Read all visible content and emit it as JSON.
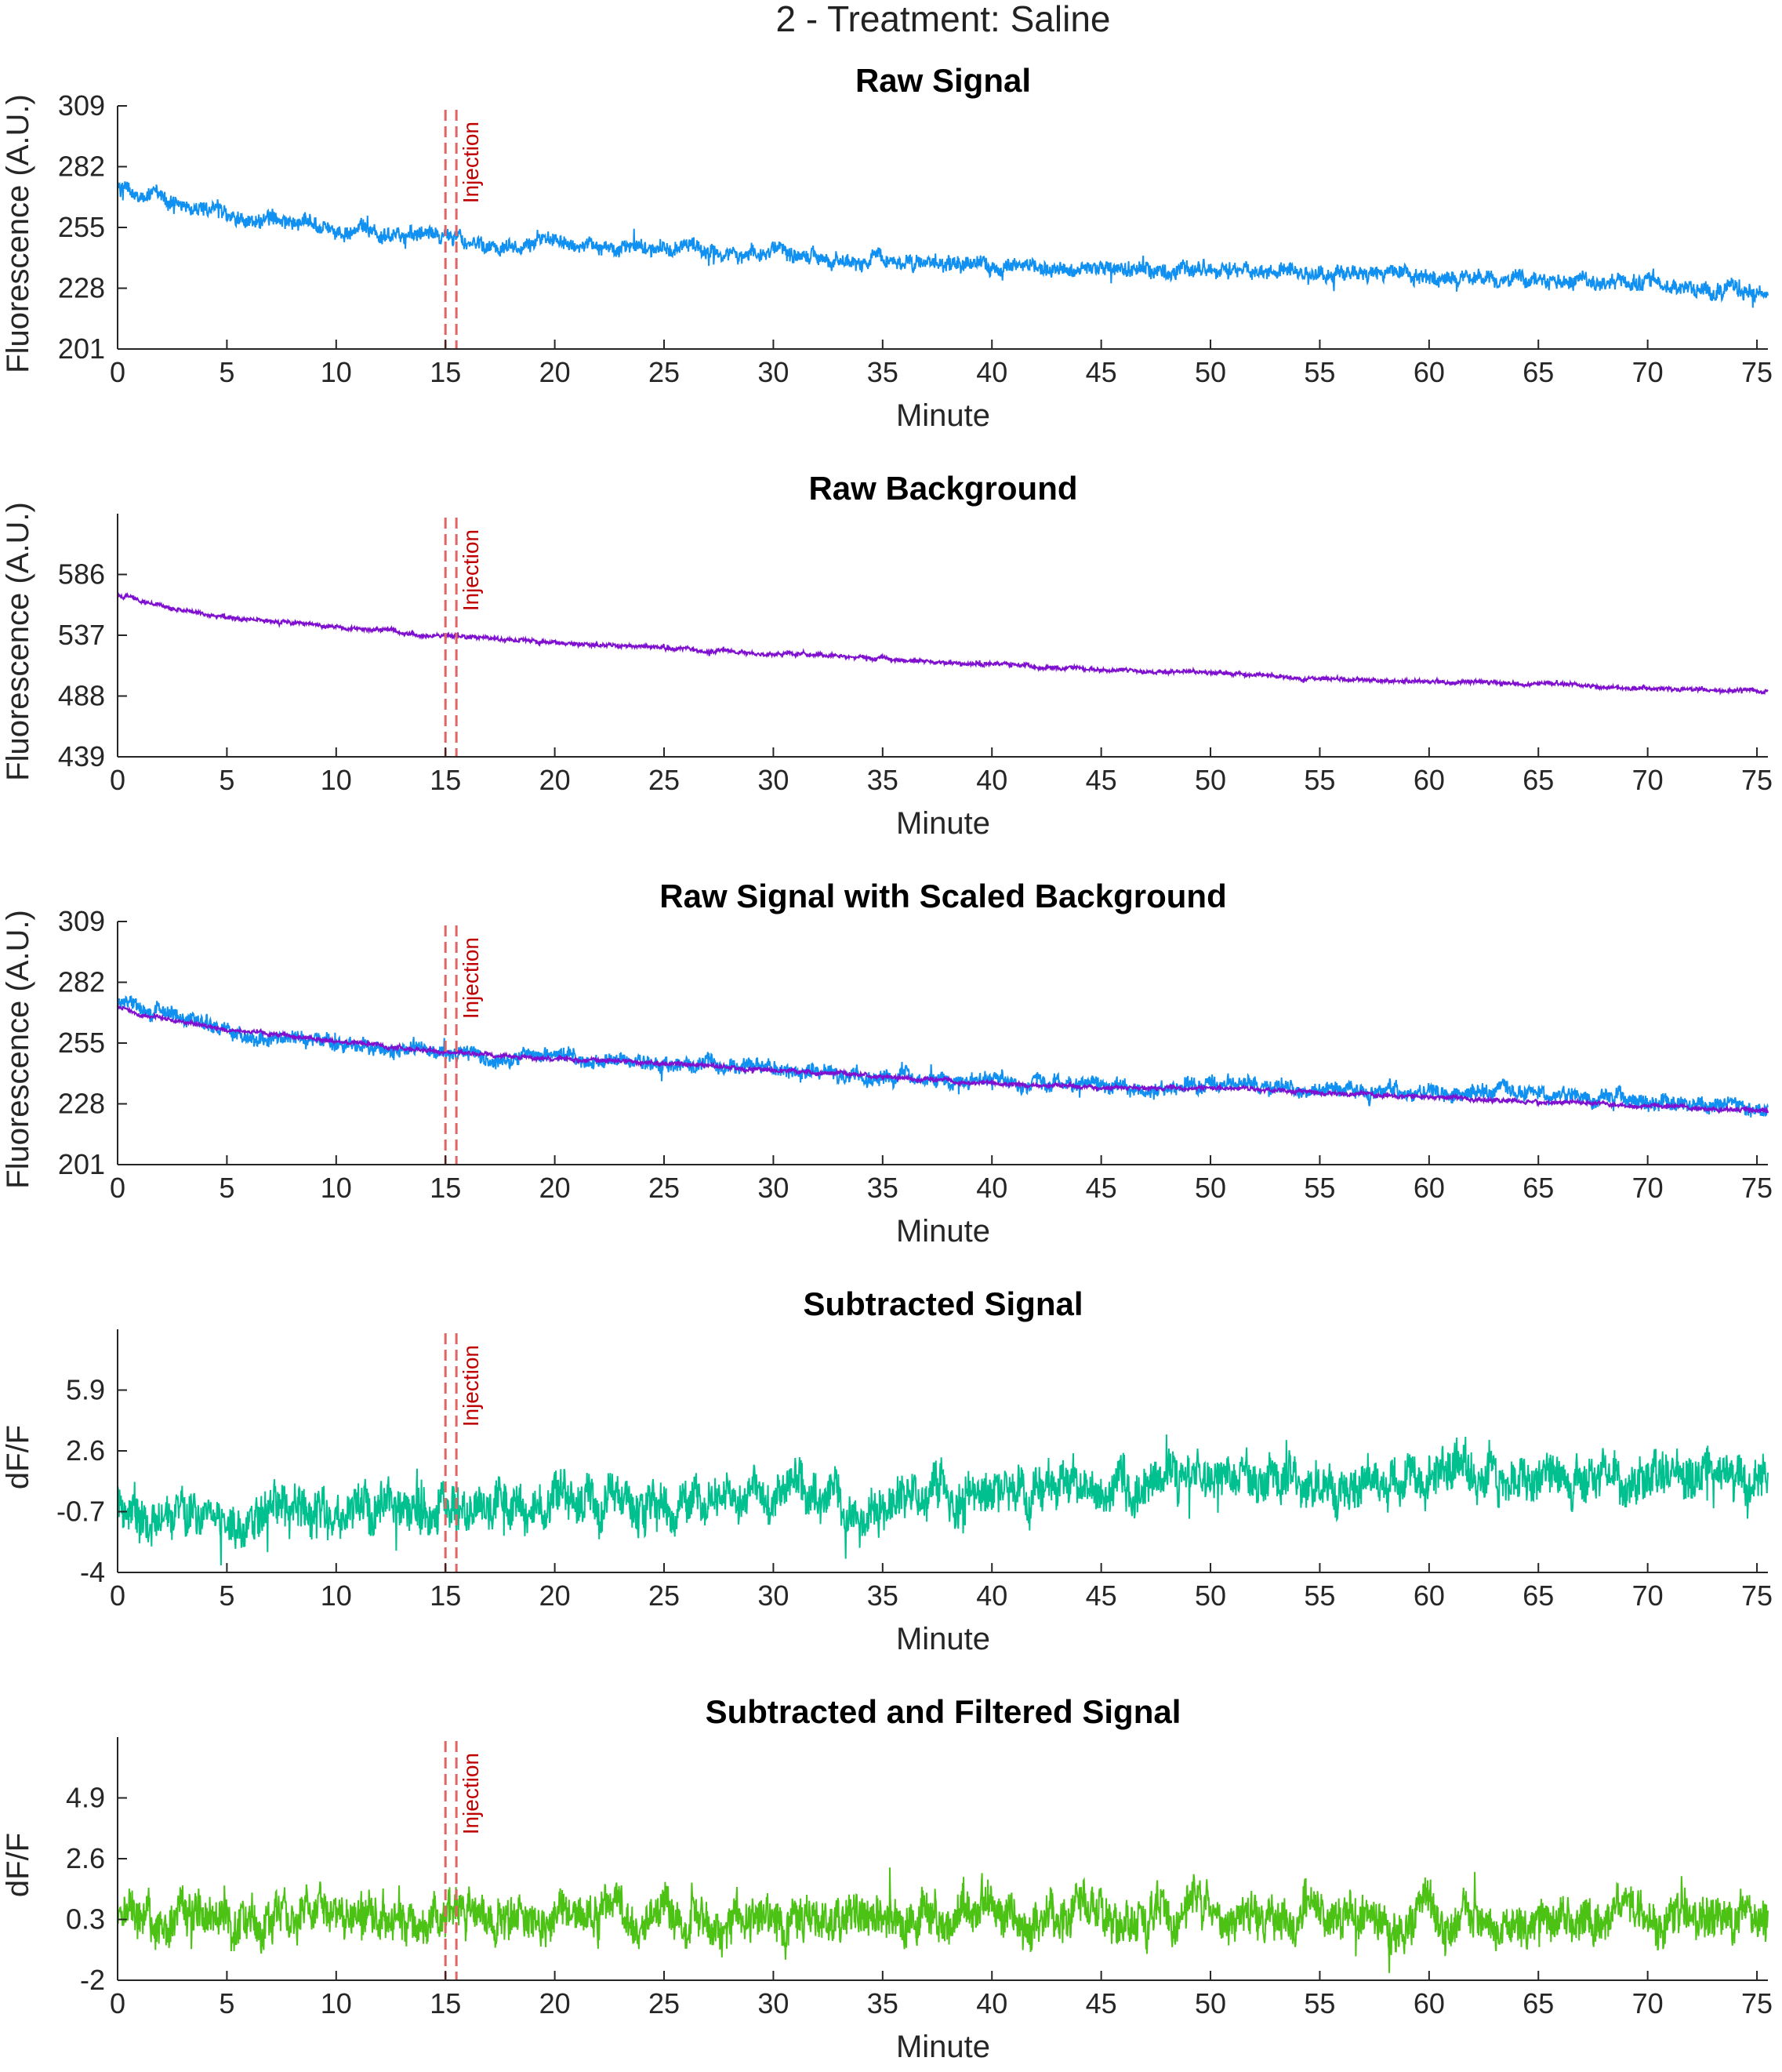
{
  "figure_title": "2 - Treatment: Saline",
  "colors": {
    "raw_signal": "#1090f0",
    "raw_background": "#8010d0",
    "subtracted": "#00c090",
    "filtered": "#4cc214",
    "injection": "#e06666",
    "injection_label": "#c00000",
    "axis": "#262626"
  },
  "chart_data": [
    {
      "type": "line",
      "title": "Raw Signal",
      "xlabel": "Minute",
      "ylabel": "Fluorescence (A.U.)",
      "xlim": [
        0,
        75.5
      ],
      "ylim": [
        201,
        309
      ],
      "xticks": [
        0,
        5,
        10,
        15,
        20,
        25,
        30,
        35,
        40,
        45,
        50,
        55,
        60,
        65,
        70,
        75
      ],
      "yticks": [
        "201",
        "228",
        "255",
        "282",
        "309"
      ],
      "injection": {
        "x": [
          15,
          15.5
        ],
        "label": "Injection"
      },
      "series": [
        {
          "color": "#1090f0",
          "noise": 3.5,
          "x": [
            0,
            1,
            2,
            3,
            5,
            7,
            10,
            12,
            15,
            17,
            20,
            25,
            30,
            35,
            40,
            45,
            48,
            50,
            55,
            60,
            65,
            70,
            75.5
          ],
          "y": [
            273,
            270,
            268,
            265,
            261,
            258,
            254,
            252,
            251,
            248,
            248,
            246,
            243,
            240,
            238,
            236,
            234,
            237,
            234,
            233,
            232,
            229,
            226
          ]
        }
      ]
    },
    {
      "type": "line",
      "title": "Raw Background",
      "xlabel": "Minute",
      "ylabel": "Fluorescence (A.U.)",
      "xlim": [
        0,
        75.5
      ],
      "ylim": [
        439,
        635
      ],
      "xticks": [
        0,
        5,
        10,
        15,
        20,
        25,
        30,
        35,
        40,
        45,
        50,
        55,
        60,
        65,
        70,
        75
      ],
      "yticks": [
        "439",
        "488",
        "537",
        "586"
      ],
      "injection": {
        "x": [
          15,
          15.5
        ],
        "label": "Injection"
      },
      "series": [
        {
          "color": "#8010d0",
          "noise": 1.6,
          "x": [
            0,
            1,
            3,
            5,
            10,
            15,
            20,
            25,
            30,
            35,
            40,
            45,
            50,
            55,
            60,
            65,
            70,
            75.5
          ],
          "y": [
            570,
            565,
            557,
            551,
            544,
            536,
            531,
            527,
            522,
            518,
            513,
            509,
            507,
            502,
            500,
            498,
            494,
            492
          ]
        }
      ]
    },
    {
      "type": "line",
      "title": "Raw Signal with Scaled Background",
      "xlabel": "Minute",
      "ylabel": "Fluorescence (A.U.)",
      "xlim": [
        0,
        75.5
      ],
      "ylim": [
        201,
        309
      ],
      "xticks": [
        0,
        5,
        10,
        15,
        20,
        25,
        30,
        35,
        40,
        45,
        50,
        55,
        60,
        65,
        70,
        75
      ],
      "yticks": [
        "201",
        "228",
        "255",
        "282",
        "309"
      ],
      "injection": {
        "x": [
          15,
          15.5
        ],
        "label": "Injection"
      },
      "series": [
        {
          "color": "#1090f0",
          "noise": 3.5,
          "x": [
            0,
            1,
            2,
            3,
            5,
            7,
            10,
            12,
            15,
            17,
            20,
            25,
            30,
            35,
            40,
            45,
            48,
            50,
            55,
            60,
            65,
            70,
            75.5
          ],
          "y": [
            273,
            270,
            268,
            265,
            261,
            258,
            254,
            252,
            251,
            248,
            248,
            246,
            243,
            240,
            238,
            236,
            234,
            237,
            234,
            233,
            232,
            229,
            226
          ]
        },
        {
          "color": "#8010d0",
          "noise": 0.9,
          "x": [
            0,
            1,
            3,
            5,
            10,
            15,
            20,
            25,
            30,
            35,
            40,
            45,
            50,
            55,
            60,
            65,
            70,
            75.5
          ],
          "y": [
            271,
            268,
            264,
            261,
            256,
            251,
            248,
            246,
            243,
            240,
            237,
            235,
            235,
            233,
            231,
            229,
            227,
            225
          ]
        }
      ]
    },
    {
      "type": "line",
      "title": "Subtracted Signal",
      "xlabel": "Minute",
      "ylabel": "dF/F",
      "xlim": [
        0,
        75.5
      ],
      "ylim": [
        -4,
        9.2
      ],
      "xticks": [
        0,
        5,
        10,
        15,
        20,
        25,
        30,
        35,
        40,
        45,
        50,
        55,
        60,
        65,
        70,
        75
      ],
      "yticks": [
        "-4",
        "-0.7",
        "2.6",
        "5.9"
      ],
      "injection": {
        "x": [
          15,
          15.5
        ],
        "label": "Injection"
      },
      "series": [
        {
          "color": "#00c090",
          "noise": 1.25,
          "x": [
            0,
            10,
            15,
            20,
            25,
            30,
            35,
            40,
            45,
            50,
            55,
            60,
            65,
            70,
            75.5
          ],
          "y": [
            -0.5,
            -0.7,
            -0.6,
            -0.4,
            -0.1,
            0.0,
            0.1,
            0.3,
            0.5,
            1.0,
            0.9,
            1.3,
            1.2,
            1.3,
            1.4
          ]
        }
      ]
    },
    {
      "type": "line",
      "title": "Subtracted and Filtered Signal",
      "xlabel": "Minute",
      "ylabel": "dF/F",
      "xlim": [
        0,
        75.5
      ],
      "ylim": [
        -2,
        7.2
      ],
      "xticks": [
        0,
        5,
        10,
        15,
        20,
        25,
        30,
        35,
        40,
        45,
        50,
        55,
        60,
        65,
        70,
        75
      ],
      "yticks": [
        "-2",
        "0.3",
        "2.6",
        "4.9"
      ],
      "injection": {
        "x": [
          15,
          15.5
        ],
        "label": "Injection"
      },
      "series": [
        {
          "color": "#4cc214",
          "noise": 0.85,
          "x": [
            0,
            75.5
          ],
          "y": [
            0.4,
            0.4
          ]
        }
      ]
    }
  ]
}
